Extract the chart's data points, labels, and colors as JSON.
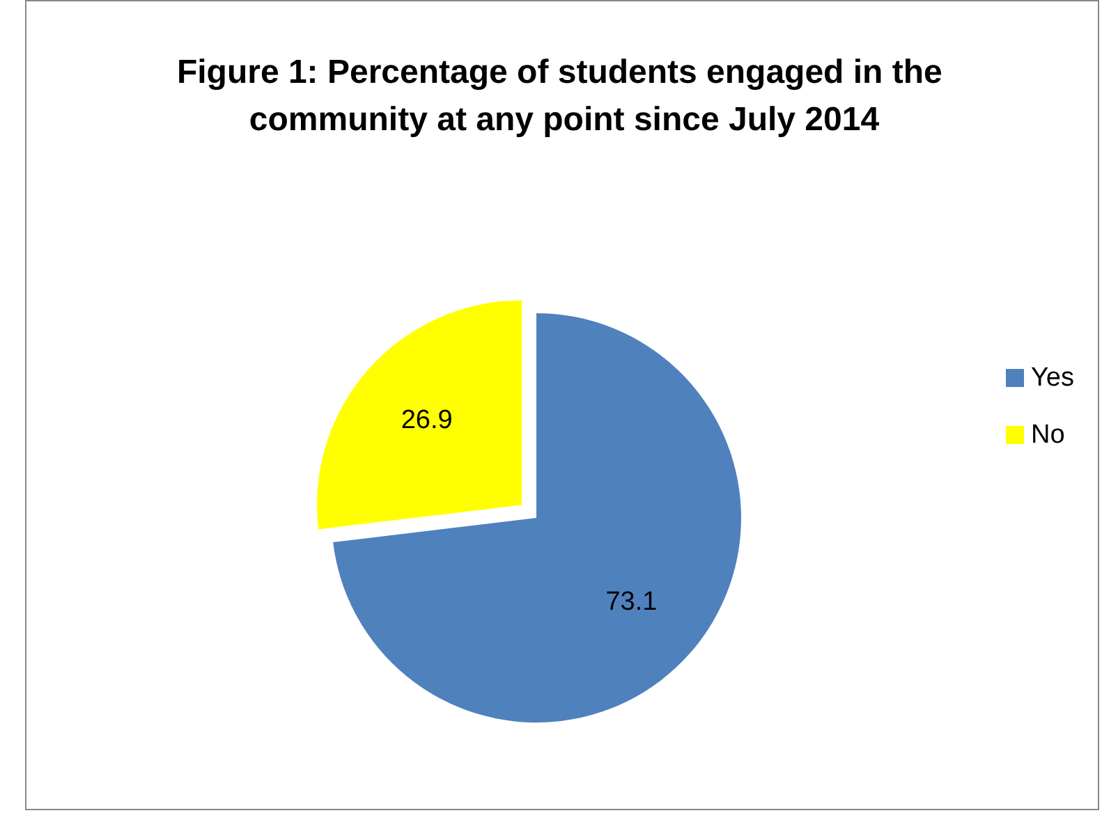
{
  "chart_data": {
    "type": "pie",
    "title": "Figure 1: Percentage of students engaged in the community at any point since July 2014",
    "categories": [
      "Yes",
      "No"
    ],
    "values": [
      73.1,
      26.9
    ],
    "colors": [
      "#4f81bd",
      "#ffff00"
    ],
    "data_labels": true,
    "legend": "right"
  }
}
